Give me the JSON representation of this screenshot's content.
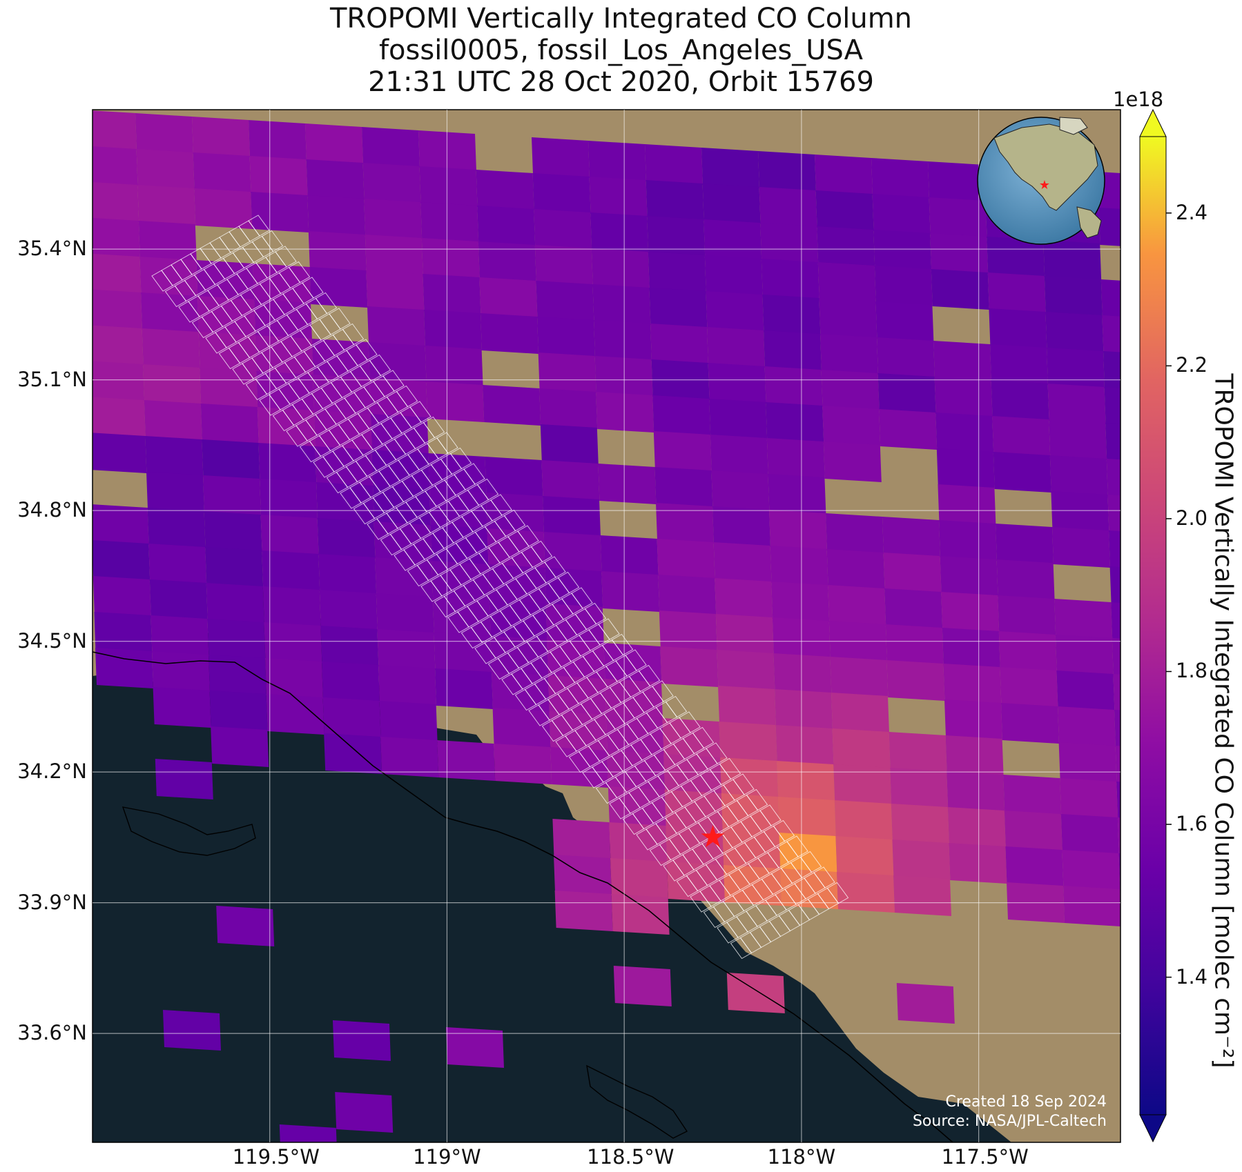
{
  "title": {
    "line1": "TROPOMI Vertically Integrated CO Column",
    "line2": "fossil0005, fossil_Los_Angeles_USA",
    "line3": "21:31 UTC 28 Oct 2020, Orbit 15769"
  },
  "map": {
    "lon_range": [
      -120.0,
      -117.1
    ],
    "lat_range": [
      33.35,
      35.72
    ],
    "target": {
      "name": "target-star",
      "lon": -118.25,
      "lat": 34.05
    },
    "lon_ticks": [
      {
        "value": -119.5,
        "label": "119.5°W"
      },
      {
        "value": -119.0,
        "label": "119°W"
      },
      {
        "value": -118.5,
        "label": "118.5°W"
      },
      {
        "value": -118.0,
        "label": "118°W"
      },
      {
        "value": -117.5,
        "label": "117.5°W"
      }
    ],
    "lat_ticks": [
      {
        "value": 35.4,
        "label": "35.4°N"
      },
      {
        "value": 35.1,
        "label": "35.1°N"
      },
      {
        "value": 34.8,
        "label": "34.8°N"
      },
      {
        "value": 34.5,
        "label": "34.5°N"
      },
      {
        "value": 34.2,
        "label": "34.2°N"
      },
      {
        "value": 33.9,
        "label": "33.9°N"
      },
      {
        "value": 33.6,
        "label": "33.6°N"
      }
    ],
    "grid": true,
    "basemap": "satellite imagery",
    "ocean_color": "#12232e",
    "land_color": "#a38d68",
    "overlay_outline_color": "#ffffff",
    "target_color": "#ff1a1a"
  },
  "colorbar": {
    "colormap": "plasma",
    "vmin": 1.22,
    "vmax": 2.5,
    "exponent_label": "1e18",
    "ticks": [
      {
        "value": 1.4,
        "label": "1.4"
      },
      {
        "value": 1.6,
        "label": "1.6"
      },
      {
        "value": 1.8,
        "label": "1.8"
      },
      {
        "value": 2.0,
        "label": "2.0"
      },
      {
        "value": 2.2,
        "label": "2.2"
      },
      {
        "value": 2.4,
        "label": "2.4"
      }
    ],
    "label": "TROPOMI Vertically Integrated CO Column [molec cm⁻²]",
    "extend": "both"
  },
  "inset_globe": {
    "description_icon": "globe-icon",
    "marker_color": "#ff1a1a"
  },
  "footer": {
    "created": "Created 18 Sep 2024",
    "source": "Source: NASA/JPL-Caltech"
  }
}
